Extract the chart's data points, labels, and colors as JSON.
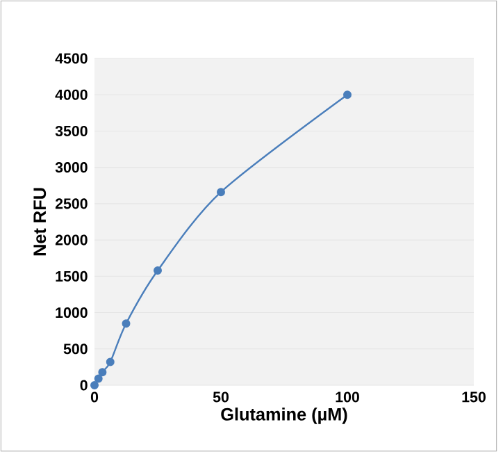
{
  "chart_data": {
    "type": "line",
    "xlabel": "Glutamine (µM)",
    "ylabel": "Net RFU",
    "x": [
      0,
      1.5625,
      3.125,
      6.25,
      12.5,
      25,
      50,
      100
    ],
    "series": [
      {
        "color": "#4a7ebb",
        "values": [
          0,
          90,
          180,
          320,
          850,
          1580,
          2660,
          4000
        ]
      }
    ],
    "xlim": [
      0,
      150
    ],
    "xticks": [
      0,
      50,
      100,
      150
    ],
    "ylim": [
      0,
      4500
    ],
    "yticks": [
      0,
      500,
      1000,
      1500,
      2000,
      2500,
      3000,
      3500,
      4000,
      4500
    ],
    "grid": "y",
    "marker": "circle",
    "line_style": "solid"
  }
}
